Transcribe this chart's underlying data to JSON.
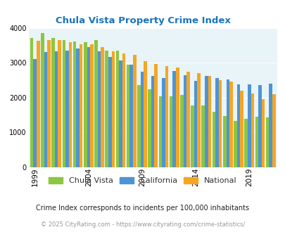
{
  "title": "Chula Vista Property Crime Index",
  "title_color": "#1a75bb",
  "years": [
    1999,
    2000,
    2001,
    2002,
    2003,
    2004,
    2005,
    2006,
    2007,
    2008,
    2009,
    2010,
    2011,
    2012,
    2013,
    2014,
    2015,
    2016,
    2017,
    2018,
    2019,
    2020,
    2021
  ],
  "chula_vista": [
    3700,
    3850,
    3700,
    3650,
    3600,
    3580,
    3650,
    3340,
    3350,
    2950,
    2360,
    2240,
    2040,
    2040,
    2080,
    1760,
    1760,
    1590,
    1460,
    1330,
    1390,
    1440,
    1430
  ],
  "california": [
    3110,
    3300,
    3320,
    3340,
    3410,
    3450,
    3330,
    3170,
    3060,
    2950,
    2730,
    2620,
    2560,
    2750,
    2640,
    2470,
    2620,
    2560,
    2510,
    2370,
    2380,
    2360,
    2390
  ],
  "national": [
    3620,
    3640,
    3650,
    3590,
    3520,
    3520,
    3440,
    3330,
    3260,
    3220,
    3050,
    2960,
    2910,
    2860,
    2730,
    2700,
    2610,
    2490,
    2450,
    2200,
    2120,
    1950,
    2090
  ],
  "cv_color": "#8dc63f",
  "ca_color": "#4d94d4",
  "nat_color": "#f5a623",
  "bg_color": "#e8f4f8",
  "ylim": [
    0,
    4000
  ],
  "yticks": [
    0,
    1000,
    2000,
    3000,
    4000
  ],
  "xtick_years": [
    1999,
    2004,
    2009,
    2014,
    2019
  ],
  "legend_labels": [
    "Chula Vista",
    "California",
    "National"
  ],
  "footnote": "Crime Index corresponds to incidents per 100,000 inhabitants",
  "copyright": "© 2025 CityRating.com - https://www.cityrating.com/crime-statistics/",
  "footnote_color": "#222222",
  "copyright_color": "#999999"
}
